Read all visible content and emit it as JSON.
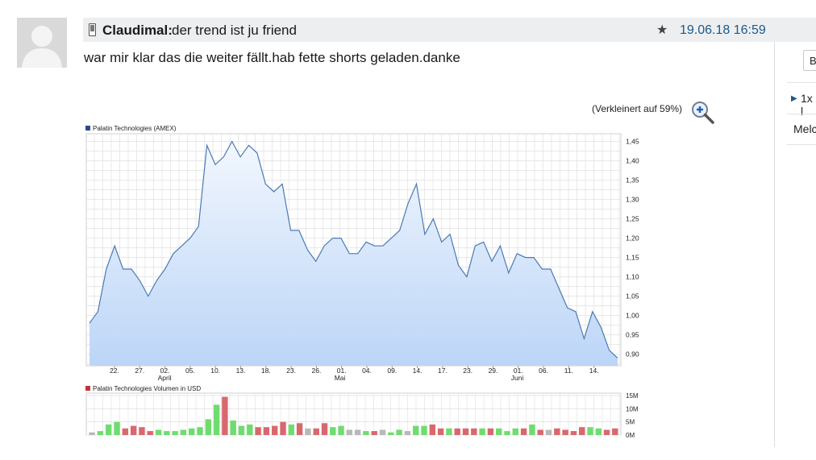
{
  "post": {
    "author": "Claudimal:",
    "subject": "der trend ist ju friend",
    "timestamp": "19.06.18 16:59",
    "body": "war mir klar das die weiter fällt.hab fette shorts geladen.danke",
    "scale_note": "(Verkleinert auf 59%)"
  },
  "sidebar": {
    "button_label": "B",
    "item1": "1x l",
    "item2": "Melc"
  },
  "icons": {
    "author_device": "phone-icon",
    "favorite": "star-icon",
    "zoom": "zoom-in-icon",
    "avatar": "user-silhouette-icon"
  },
  "colors": {
    "price_line": "#4a7ab5",
    "price_fill_top": "#f2f7fe",
    "price_fill_bottom": "#bcd5f7",
    "volume_up": "#6fdc6f",
    "volume_down": "#d9686e",
    "volume_flat": "#b8b8b8",
    "timestamp": "#1d5a8a"
  },
  "chart_data": [
    {
      "type": "area",
      "legend": "Palatin Technologies (AMEX)",
      "x_tick_labels": [
        "22.",
        "27.",
        "02.",
        "05.",
        "10.",
        "13.",
        "18.",
        "23.",
        "26.",
        "01.",
        "04.",
        "09.",
        "14.",
        "17.",
        "23.",
        "29.",
        "01.",
        "06.",
        "11.",
        "14."
      ],
      "x_month_labels": [
        {
          "label": "April",
          "under_tick": 2
        },
        {
          "label": "Mai",
          "under_tick": 9
        },
        {
          "label": "Juni",
          "under_tick": 16
        }
      ],
      "y_tick_labels": [
        "0,90",
        "0,95",
        "1,00",
        "1,05",
        "1,10",
        "1,15",
        "1,20",
        "1,25",
        "1,30",
        "1,35",
        "1,40",
        "1,45"
      ],
      "y_ticks": [
        0.9,
        0.95,
        1.0,
        1.05,
        1.1,
        1.15,
        1.2,
        1.25,
        1.3,
        1.35,
        1.4,
        1.45
      ],
      "ylim": [
        0.87,
        1.47
      ],
      "grid": true,
      "legend_position": "top-left",
      "values": [
        0.98,
        1.01,
        1.12,
        1.18,
        1.12,
        1.12,
        1.09,
        1.05,
        1.09,
        1.12,
        1.16,
        1.18,
        1.2,
        1.23,
        1.44,
        1.39,
        1.41,
        1.45,
        1.41,
        1.44,
        1.42,
        1.34,
        1.32,
        1.34,
        1.22,
        1.22,
        1.17,
        1.14,
        1.18,
        1.2,
        1.2,
        1.16,
        1.16,
        1.19,
        1.18,
        1.18,
        1.2,
        1.22,
        1.29,
        1.34,
        1.21,
        1.25,
        1.19,
        1.21,
        1.13,
        1.1,
        1.18,
        1.19,
        1.14,
        1.18,
        1.11,
        1.16,
        1.15,
        1.15,
        1.12,
        1.12,
        1.07,
        1.02,
        1.01,
        0.94,
        1.01,
        0.97,
        0.91,
        0.89
      ]
    },
    {
      "type": "bar",
      "legend": "Palatin Technologies Volumen in USD",
      "y_tick_labels": [
        "0M",
        "5M",
        "10M",
        "15M"
      ],
      "y_ticks": [
        0,
        5,
        10,
        15
      ],
      "ylim": [
        0,
        15
      ],
      "grid": true,
      "legend_position": "top-left",
      "unit": "M USD",
      "values": [
        1.0,
        1.5,
        4.0,
        5.0,
        2.5,
        3.5,
        3.0,
        1.5,
        2.0,
        1.5,
        1.5,
        2.0,
        2.5,
        3.0,
        6.0,
        11.5,
        14.5,
        5.5,
        3.5,
        4.0,
        3.0,
        3.0,
        3.5,
        5.0,
        4.0,
        4.5,
        2.5,
        2.5,
        4.5,
        3.0,
        3.5,
        2.0,
        2.0,
        1.5,
        1.5,
        2.0,
        1.0,
        2.0,
        1.5,
        3.5,
        3.5,
        4.0,
        2.5,
        2.5,
        2.5,
        2.5,
        2.5,
        2.5,
        2.5,
        2.5,
        1.5,
        2.5,
        2.5,
        4.0,
        2.0,
        2.0,
        2.5,
        2.0,
        1.5,
        3.0,
        3.0,
        2.5,
        2.0,
        2.5
      ],
      "direction": [
        "f",
        "u",
        "u",
        "u",
        "d",
        "d",
        "d",
        "d",
        "u",
        "u",
        "u",
        "u",
        "u",
        "u",
        "u",
        "u",
        "d",
        "u",
        "u",
        "u",
        "d",
        "d",
        "d",
        "d",
        "u",
        "d",
        "f",
        "d",
        "d",
        "u",
        "u",
        "f",
        "f",
        "u",
        "d",
        "f",
        "u",
        "u",
        "f",
        "u",
        "u",
        "d",
        "d",
        "u",
        "d",
        "d",
        "d",
        "u",
        "d",
        "u",
        "u",
        "u",
        "d",
        "u",
        "d",
        "f",
        "d",
        "d",
        "d",
        "d",
        "u",
        "u",
        "d",
        "d"
      ]
    }
  ]
}
